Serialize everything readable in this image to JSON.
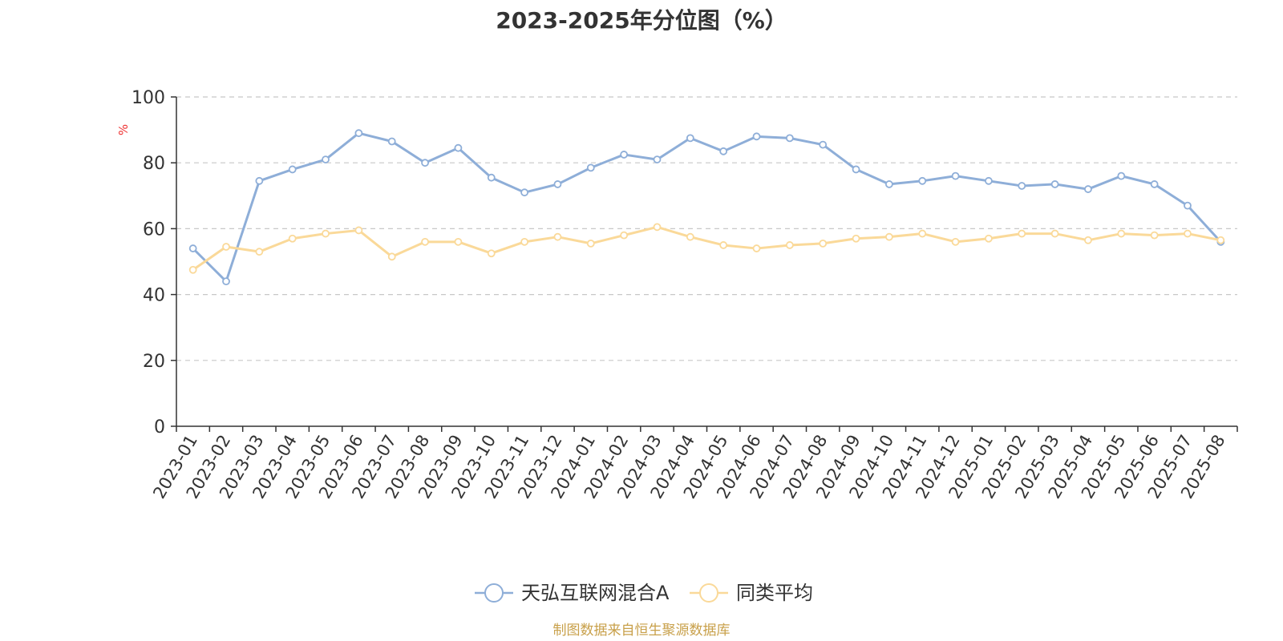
{
  "chart_data": {
    "type": "line",
    "title": "2023-2025年分位图（%）",
    "ylabel": "%",
    "ylim": [
      0,
      100
    ],
    "yticks": [
      0,
      20,
      40,
      60,
      80,
      100
    ],
    "grid": true,
    "legend_position": "bottom-center",
    "categories": [
      "2023-01",
      "2023-02",
      "2023-03",
      "2023-04",
      "2023-05",
      "2023-06",
      "2023-07",
      "2023-08",
      "2023-09",
      "2023-10",
      "2023-11",
      "2023-12",
      "2024-01",
      "2024-02",
      "2024-03",
      "2024-04",
      "2024-05",
      "2024-06",
      "2024-07",
      "2024-08",
      "2024-09",
      "2024-10",
      "2024-11",
      "2024-12",
      "2025-01",
      "2025-02",
      "2025-03",
      "2025-04",
      "2025-05",
      "2025-06",
      "2025-07",
      "2025-08"
    ],
    "series": [
      {
        "name": "天弘互联网混合A",
        "color": "#8eaed8",
        "values": [
          54,
          44,
          74.5,
          78,
          81,
          89,
          86.5,
          80,
          84.5,
          75.5,
          71,
          73.5,
          78.5,
          82.5,
          81,
          87.5,
          83.5,
          88,
          87.5,
          85.5,
          78,
          73.5,
          74.5,
          76,
          74.5,
          73,
          73.5,
          72,
          76,
          73.5,
          67,
          56
        ]
      },
      {
        "name": "同类平均",
        "color": "#fad999",
        "values": [
          47.5,
          54.5,
          53,
          57,
          58.5,
          59.5,
          51.5,
          56,
          56,
          52.5,
          56,
          57.5,
          55.5,
          58,
          60.5,
          57.5,
          55,
          54,
          55,
          55.5,
          57,
          57.5,
          58.5,
          56,
          57,
          58.5,
          58.5,
          56.5,
          58.5,
          58,
          58.5,
          56.5
        ]
      }
    ]
  },
  "footer": "制图数据来自恒生聚源数据库"
}
